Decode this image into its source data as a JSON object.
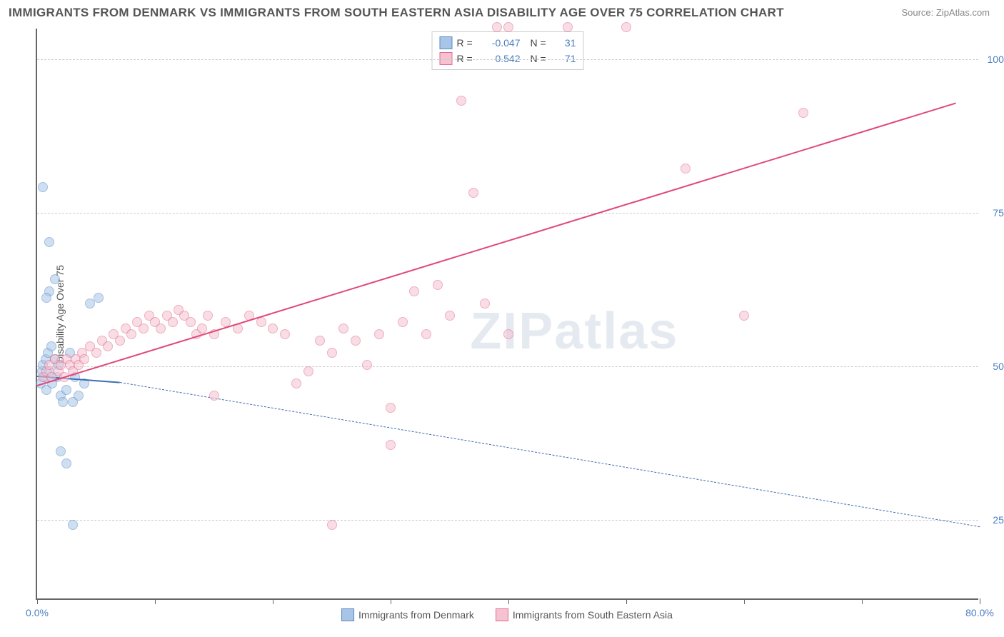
{
  "title": "IMMIGRANTS FROM DENMARK VS IMMIGRANTS FROM SOUTH EASTERN ASIA DISABILITY AGE OVER 75 CORRELATION CHART",
  "source": "Source: ZipAtlas.com",
  "watermark": "ZIPatlas",
  "chart": {
    "type": "scatter",
    "y_axis_label": "Disability Age Over 75",
    "xlim": [
      0,
      80
    ],
    "ylim": [
      12,
      105
    ],
    "x_ticks": [
      0,
      10,
      20,
      30,
      40,
      50,
      60,
      70,
      80
    ],
    "x_tick_labels": {
      "0": "0.0%",
      "80": "80.0%"
    },
    "y_gridlines": [
      25,
      50,
      75,
      100
    ],
    "y_tick_labels": {
      "25": "25.0%",
      "50": "50.0%",
      "75": "75.0%",
      "100": "100.0%"
    },
    "background_color": "#ffffff",
    "grid_color": "#cccccc",
    "axis_color": "#666666",
    "tick_label_color": "#4a7ec0",
    "point_radius": 7,
    "point_opacity": 0.55,
    "series": [
      {
        "name": "Immigrants from Denmark",
        "fill_color": "#a8c5e8",
        "stroke_color": "#5a8bc4",
        "line_color": "#3a6fb0",
        "R": "-0.047",
        "N": "31",
        "regression": {
          "x1": 0,
          "y1": 48.5,
          "x2": 7,
          "y2": 47.5,
          "style": "solid"
        },
        "regression_extrapolate": {
          "x1": 7,
          "y1": 47.5,
          "x2": 80,
          "y2": 24.0,
          "style": "dashed"
        },
        "points": [
          [
            0.3,
            47
          ],
          [
            0.4,
            49
          ],
          [
            0.5,
            50
          ],
          [
            0.6,
            48
          ],
          [
            0.7,
            51
          ],
          [
            0.8,
            46
          ],
          [
            0.9,
            52
          ],
          [
            1.0,
            49
          ],
          [
            1.2,
            53
          ],
          [
            1.3,
            47
          ],
          [
            1.5,
            51
          ],
          [
            1.7,
            48
          ],
          [
            1.8,
            50
          ],
          [
            2.0,
            45
          ],
          [
            2.2,
            44
          ],
          [
            2.5,
            46
          ],
          [
            2.8,
            52
          ],
          [
            3.0,
            44
          ],
          [
            3.2,
            48
          ],
          [
            3.5,
            45
          ],
          [
            4.0,
            47
          ],
          [
            1.0,
            62
          ],
          [
            1.5,
            64
          ],
          [
            0.8,
            61
          ],
          [
            4.5,
            60
          ],
          [
            5.2,
            61
          ],
          [
            1.0,
            70
          ],
          [
            0.5,
            79
          ],
          [
            2.0,
            36
          ],
          [
            2.5,
            34
          ],
          [
            3.0,
            24
          ]
        ]
      },
      {
        "name": "Immigrants from South Eastern Asia",
        "fill_color": "#f5c2d1",
        "stroke_color": "#e56b8f",
        "line_color": "#e0487a",
        "R": "0.542",
        "N": "71",
        "regression": {
          "x1": 0,
          "y1": 47.0,
          "x2": 78,
          "y2": 93.0,
          "style": "solid"
        },
        "points": [
          [
            0.5,
            48
          ],
          [
            0.8,
            49
          ],
          [
            1.0,
            50
          ],
          [
            1.2,
            48
          ],
          [
            1.5,
            51
          ],
          [
            1.8,
            49
          ],
          [
            2.0,
            50
          ],
          [
            2.3,
            48
          ],
          [
            2.5,
            51
          ],
          [
            2.8,
            50
          ],
          [
            3.0,
            49
          ],
          [
            3.3,
            51
          ],
          [
            3.5,
            50
          ],
          [
            3.8,
            52
          ],
          [
            4.0,
            51
          ],
          [
            4.5,
            53
          ],
          [
            5.0,
            52
          ],
          [
            5.5,
            54
          ],
          [
            6.0,
            53
          ],
          [
            6.5,
            55
          ],
          [
            7.0,
            54
          ],
          [
            7.5,
            56
          ],
          [
            8.0,
            55
          ],
          [
            8.5,
            57
          ],
          [
            9.0,
            56
          ],
          [
            9.5,
            58
          ],
          [
            10.0,
            57
          ],
          [
            10.5,
            56
          ],
          [
            11.0,
            58
          ],
          [
            11.5,
            57
          ],
          [
            12.0,
            59
          ],
          [
            12.5,
            58
          ],
          [
            13.0,
            57
          ],
          [
            13.5,
            55
          ],
          [
            14.0,
            56
          ],
          [
            14.5,
            58
          ],
          [
            15.0,
            55
          ],
          [
            16.0,
            57
          ],
          [
            17.0,
            56
          ],
          [
            18.0,
            58
          ],
          [
            19.0,
            57
          ],
          [
            20.0,
            56
          ],
          [
            21.0,
            55
          ],
          [
            22.0,
            47
          ],
          [
            23.0,
            49
          ],
          [
            24.0,
            54
          ],
          [
            25.0,
            52
          ],
          [
            26.0,
            56
          ],
          [
            27.0,
            54
          ],
          [
            28.0,
            50
          ],
          [
            29.0,
            55
          ],
          [
            30.0,
            43
          ],
          [
            31.0,
            57
          ],
          [
            32.0,
            62
          ],
          [
            33.0,
            55
          ],
          [
            34.0,
            63
          ],
          [
            35.0,
            58
          ],
          [
            36.0,
            93
          ],
          [
            37.0,
            78
          ],
          [
            38.0,
            60
          ],
          [
            39.0,
            105
          ],
          [
            40.0,
            105
          ],
          [
            45.0,
            105
          ],
          [
            50.0,
            105
          ],
          [
            55.0,
            82
          ],
          [
            60.0,
            58
          ],
          [
            65.0,
            91
          ],
          [
            30.0,
            37
          ],
          [
            25.0,
            24
          ],
          [
            15.0,
            45
          ],
          [
            40.0,
            55
          ]
        ]
      }
    ]
  },
  "legend_bottom": [
    {
      "label": "Immigrants from Denmark",
      "fill": "#a8c5e8",
      "stroke": "#5a8bc4"
    },
    {
      "label": "Immigrants from South Eastern Asia",
      "fill": "#f5c2d1",
      "stroke": "#e56b8f"
    }
  ]
}
